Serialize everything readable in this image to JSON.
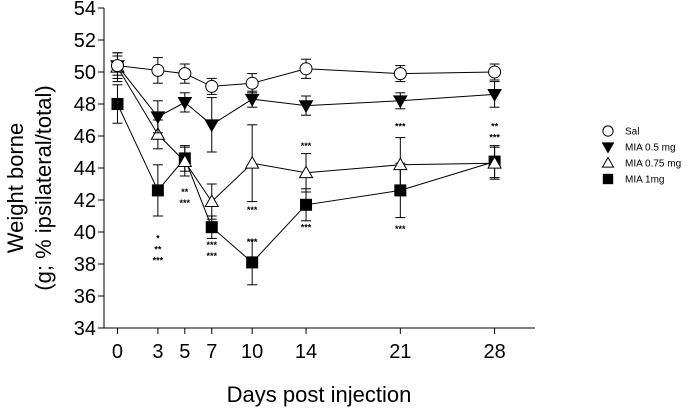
{
  "chart_data": {
    "type": "line",
    "xlabel": "Days post injection",
    "ylabel": "Weight borne",
    "ylabel_sub": "(g; % ipsilateral/total)",
    "xlim": [
      -1,
      31
    ],
    "ylim": [
      34,
      54
    ],
    "x": [
      0,
      3,
      5,
      7,
      10,
      14,
      21,
      28
    ],
    "xticks": [
      "0",
      "3",
      "5",
      "7",
      "10",
      "14",
      "21",
      "28"
    ],
    "yticks": [
      "34",
      "36",
      "38",
      "40",
      "42",
      "44",
      "46",
      "48",
      "50",
      "52",
      "54"
    ],
    "legend_position": "right",
    "series": [
      {
        "name": "Sal",
        "marker": "open-circle",
        "values": [
          50.4,
          50.1,
          49.9,
          49.1,
          49.3,
          50.2,
          49.9,
          50.0
        ],
        "errors": [
          0.6,
          0.8,
          0.6,
          0.5,
          0.6,
          0.6,
          0.5,
          0.5
        ]
      },
      {
        "name": "MIA 0.5 mg",
        "marker": "filled-down-triangle",
        "values": [
          50.4,
          47.2,
          48.1,
          46.7,
          48.3,
          47.9,
          48.2,
          48.6
        ],
        "errors": [
          0.8,
          1.0,
          0.6,
          1.7,
          0.5,
          0.6,
          0.5,
          0.8
        ]
      },
      {
        "name": "MIA 0.75 mg",
        "marker": "open-up-triangle",
        "values": [
          50.3,
          46.1,
          44.4,
          41.9,
          44.3,
          43.7,
          44.2,
          44.3
        ],
        "errors": [
          0.9,
          0.9,
          0.9,
          1.1,
          2.4,
          1.2,
          1.7,
          1.0
        ]
      },
      {
        "name": "MIA 1mg",
        "marker": "filled-square",
        "values": [
          48.0,
          42.6,
          44.6,
          40.3,
          38.1,
          41.7,
          42.6,
          44.4
        ],
        "errors": [
          1.2,
          1.6,
          0.8,
          0.7,
          1.4,
          1.0,
          1.7,
          1.0
        ]
      }
    ],
    "annotations": [
      {
        "x": 3,
        "y": 39.4,
        "lines": [
          "*",
          "**",
          "***"
        ]
      },
      {
        "x": 5,
        "y": 42.3,
        "lines": [
          "**",
          "***"
        ]
      },
      {
        "x": 7,
        "y": 39.0,
        "lines": [
          "***",
          "***"
        ]
      },
      {
        "x": 10,
        "y": 41.2,
        "lines": [
          "***"
        ]
      },
      {
        "x": 10,
        "y": 39.2,
        "lines": [
          "***"
        ]
      },
      {
        "x": 14,
        "y": 45.2,
        "lines": [
          "***"
        ]
      },
      {
        "x": 14,
        "y": 40.1,
        "lines": [
          "***"
        ]
      },
      {
        "x": 21,
        "y": 46.4,
        "lines": [
          "***"
        ]
      },
      {
        "x": 21,
        "y": 40.0,
        "lines": [
          "***"
        ]
      },
      {
        "x": 28,
        "y": 46.4,
        "lines": [
          "**",
          "***"
        ]
      }
    ]
  }
}
